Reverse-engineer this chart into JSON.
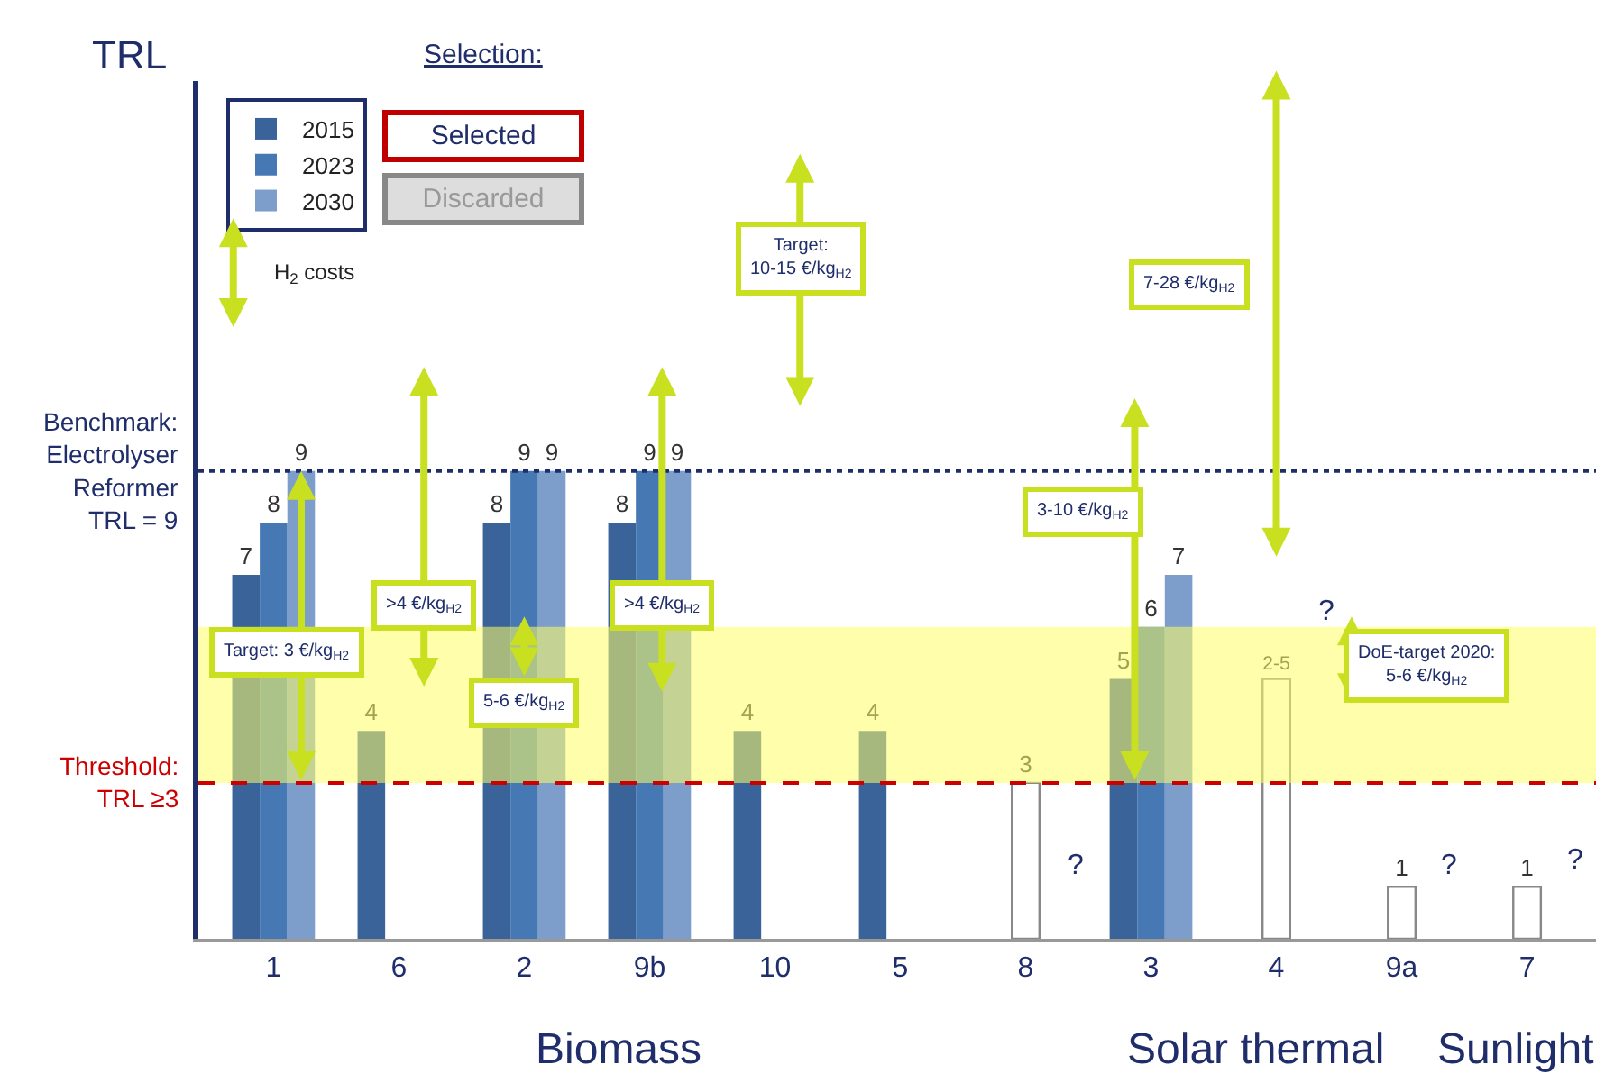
{
  "chart_data": {
    "type": "bar",
    "ylabel": "TRL",
    "categories": [
      "1",
      "6",
      "2",
      "9b",
      "10",
      "5",
      "8",
      "3",
      "4",
      "9a",
      "7"
    ],
    "series": [
      {
        "name": "2015",
        "color": "#3a6399",
        "values": [
          7,
          4,
          8,
          8,
          4,
          4,
          null,
          5,
          null,
          null,
          null
        ],
        "value_labels": [
          "7",
          "4",
          "8",
          "8",
          "4",
          "4",
          null,
          "5",
          null,
          null,
          null
        ]
      },
      {
        "name": "2023",
        "color": "#4679b3",
        "values": [
          8,
          null,
          9,
          9,
          null,
          null,
          null,
          6,
          null,
          null,
          null
        ],
        "value_labels": [
          "8",
          null,
          "9",
          "9",
          null,
          null,
          null,
          "6",
          null,
          null,
          null
        ]
      },
      {
        "name": "2030",
        "color": "#7d9dcb",
        "values": [
          9,
          null,
          9,
          9,
          null,
          null,
          null,
          7,
          null,
          null,
          null
        ],
        "value_labels": [
          "9",
          null,
          "9",
          "9",
          null,
          null,
          null,
          "7",
          null,
          null,
          null
        ]
      },
      {
        "color": "#ffffff",
        "values": [
          null,
          null,
          null,
          null,
          null,
          null,
          3,
          null,
          5,
          1,
          1
        ],
        "value_labels": [
          null,
          null,
          null,
          null,
          null,
          null,
          "3",
          null,
          "2-5",
          "1",
          "1"
        ]
      }
    ],
    "ylim": [
      0,
      16.5
    ],
    "tick_labels": "x",
    "grid": false,
    "legend": "top left",
    "data_labels": true,
    "ref_lines": [
      {
        "axis": "y",
        "value": 9,
        "label": "Benchmark:\nElectrolyser\nReformer\nTRL = 9",
        "color": "#1f2d6b",
        "line_style": "dotted"
      },
      {
        "axis": "y",
        "value": 3,
        "label": "Threshold:\nTRL ≥3",
        "color": "#cc0000",
        "line_style": "dashed"
      }
    ],
    "bands": [
      {
        "axis": "y",
        "from": 3,
        "to": 6,
        "color": "#ffff66"
      }
    ],
    "annotations": [
      "Target: 3 €/kg$_{H2}$",
      ">4 €/kg$_{H2}$",
      "5-6 €/kg$_{H2}$",
      ">4 €/kg$_{H2}$",
      "Target:\n10-15 €/kg$_{H2}$",
      "3-10 €/kg$_{H2}$",
      "7-28 €/kg$_{H2}$",
      "DoE-target 2020:\n5-6 €/kg$_{H2}$",
      "H$_{2}$ costs",
      "Selection:",
      "Selected",
      "Discarded",
      "Biomass",
      "Solar thermal",
      "Sunlight",
      "?",
      "?",
      "?",
      "?"
    ]
  }
}
